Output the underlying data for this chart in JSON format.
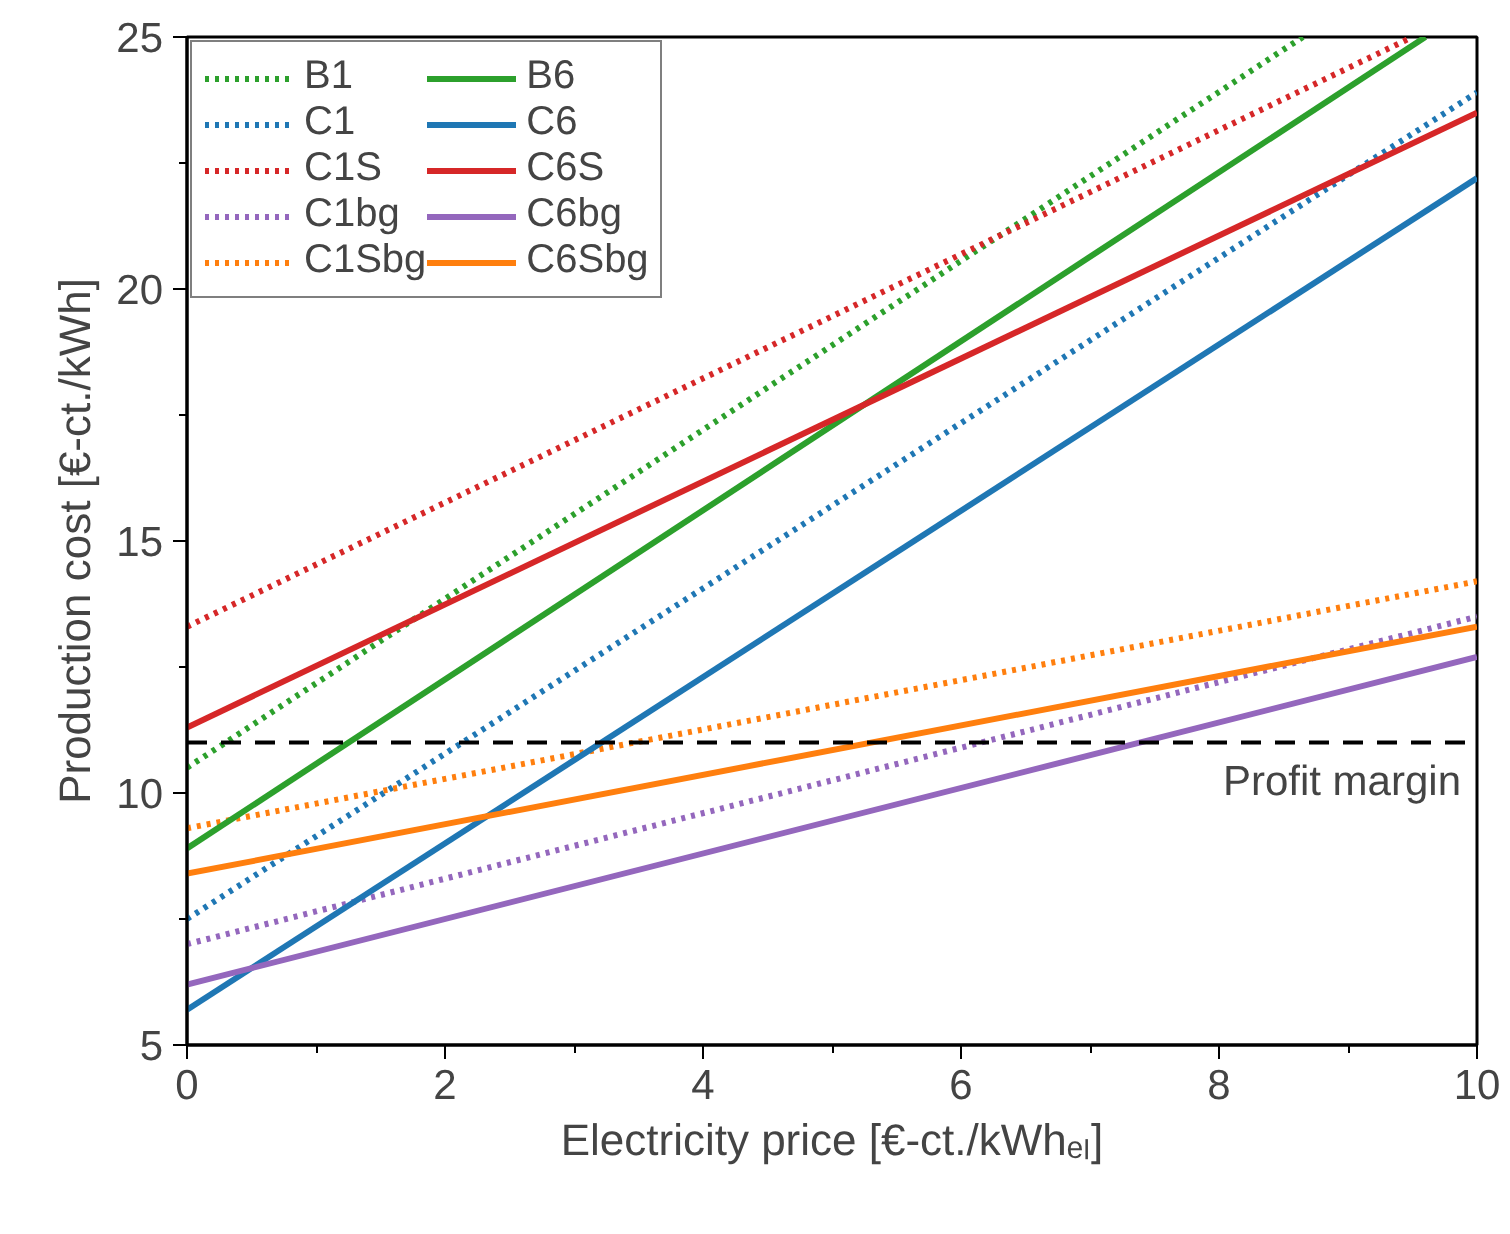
{
  "chart_data": {
    "type": "line",
    "xlabel": "Electricity price [€-ct./kWhₑₗ]",
    "ylabel": "Production cost [€-ct./kWh]",
    "xlim": [
      0,
      10
    ],
    "ylim": [
      5,
      25
    ],
    "xticks": [
      0,
      {
        "value": 1,
        "label": null
      },
      2,
      {
        "value": 3,
        "label": null
      },
      4,
      {
        "value": 5,
        "label": null
      },
      6,
      {
        "value": 7,
        "label": null
      },
      8,
      {
        "value": 9,
        "label": null
      },
      10
    ],
    "yticks": [
      5,
      {
        "value": 7.5,
        "label": null
      },
      10,
      {
        "value": 12.5,
        "label": null
      },
      15,
      {
        "value": 17.5,
        "label": null
      },
      20,
      {
        "value": 22.5,
        "label": null
      },
      25
    ],
    "grid": false,
    "legend": "top left",
    "series": [
      {
        "name": "B1",
        "color": "#2ca02c",
        "line_style": "dotted",
        "x": [
          0,
          8.65
        ],
        "values": [
          10.5,
          25
        ]
      },
      {
        "name": "C1",
        "color": "#1f77b4",
        "line_style": "dotted",
        "x": [
          0,
          10
        ],
        "values": [
          7.5,
          23.9
        ]
      },
      {
        "name": "C1S",
        "color": "#d62728",
        "line_style": "dotted",
        "x": [
          0,
          9.5
        ],
        "values": [
          13.3,
          25
        ]
      },
      {
        "name": "C1bg",
        "color": "#9467bd",
        "line_style": "dotted",
        "x": [
          0,
          10
        ],
        "values": [
          7.0,
          13.5
        ]
      },
      {
        "name": "C1Sbg",
        "color": "#ff7f0e",
        "line_style": "dotted",
        "x": [
          0,
          10
        ],
        "values": [
          9.3,
          14.2
        ]
      },
      {
        "name": "B6",
        "color": "#2ca02c",
        "line_style": "solid",
        "x": [
          0,
          9.6
        ],
        "values": [
          8.9,
          25
        ]
      },
      {
        "name": "C6",
        "color": "#1f77b4",
        "line_style": "solid",
        "x": [
          0,
          10
        ],
        "values": [
          5.7,
          22.2
        ]
      },
      {
        "name": "C6S",
        "color": "#d62728",
        "line_style": "solid",
        "x": [
          0,
          10
        ],
        "values": [
          11.3,
          23.5
        ]
      },
      {
        "name": "C6bg",
        "color": "#9467bd",
        "line_style": "solid",
        "x": [
          0,
          10
        ],
        "values": [
          6.2,
          12.7
        ]
      },
      {
        "name": "C6Sbg",
        "color": "#ff7f0e",
        "line_style": "solid",
        "x": [
          0,
          10
        ],
        "values": [
          8.4,
          13.3
        ]
      }
    ],
    "ref_lines": [
      {
        "axis": "y",
        "value": 11,
        "label": "Profit margin",
        "color": "#000000",
        "line_style": "dashed"
      }
    ]
  }
}
